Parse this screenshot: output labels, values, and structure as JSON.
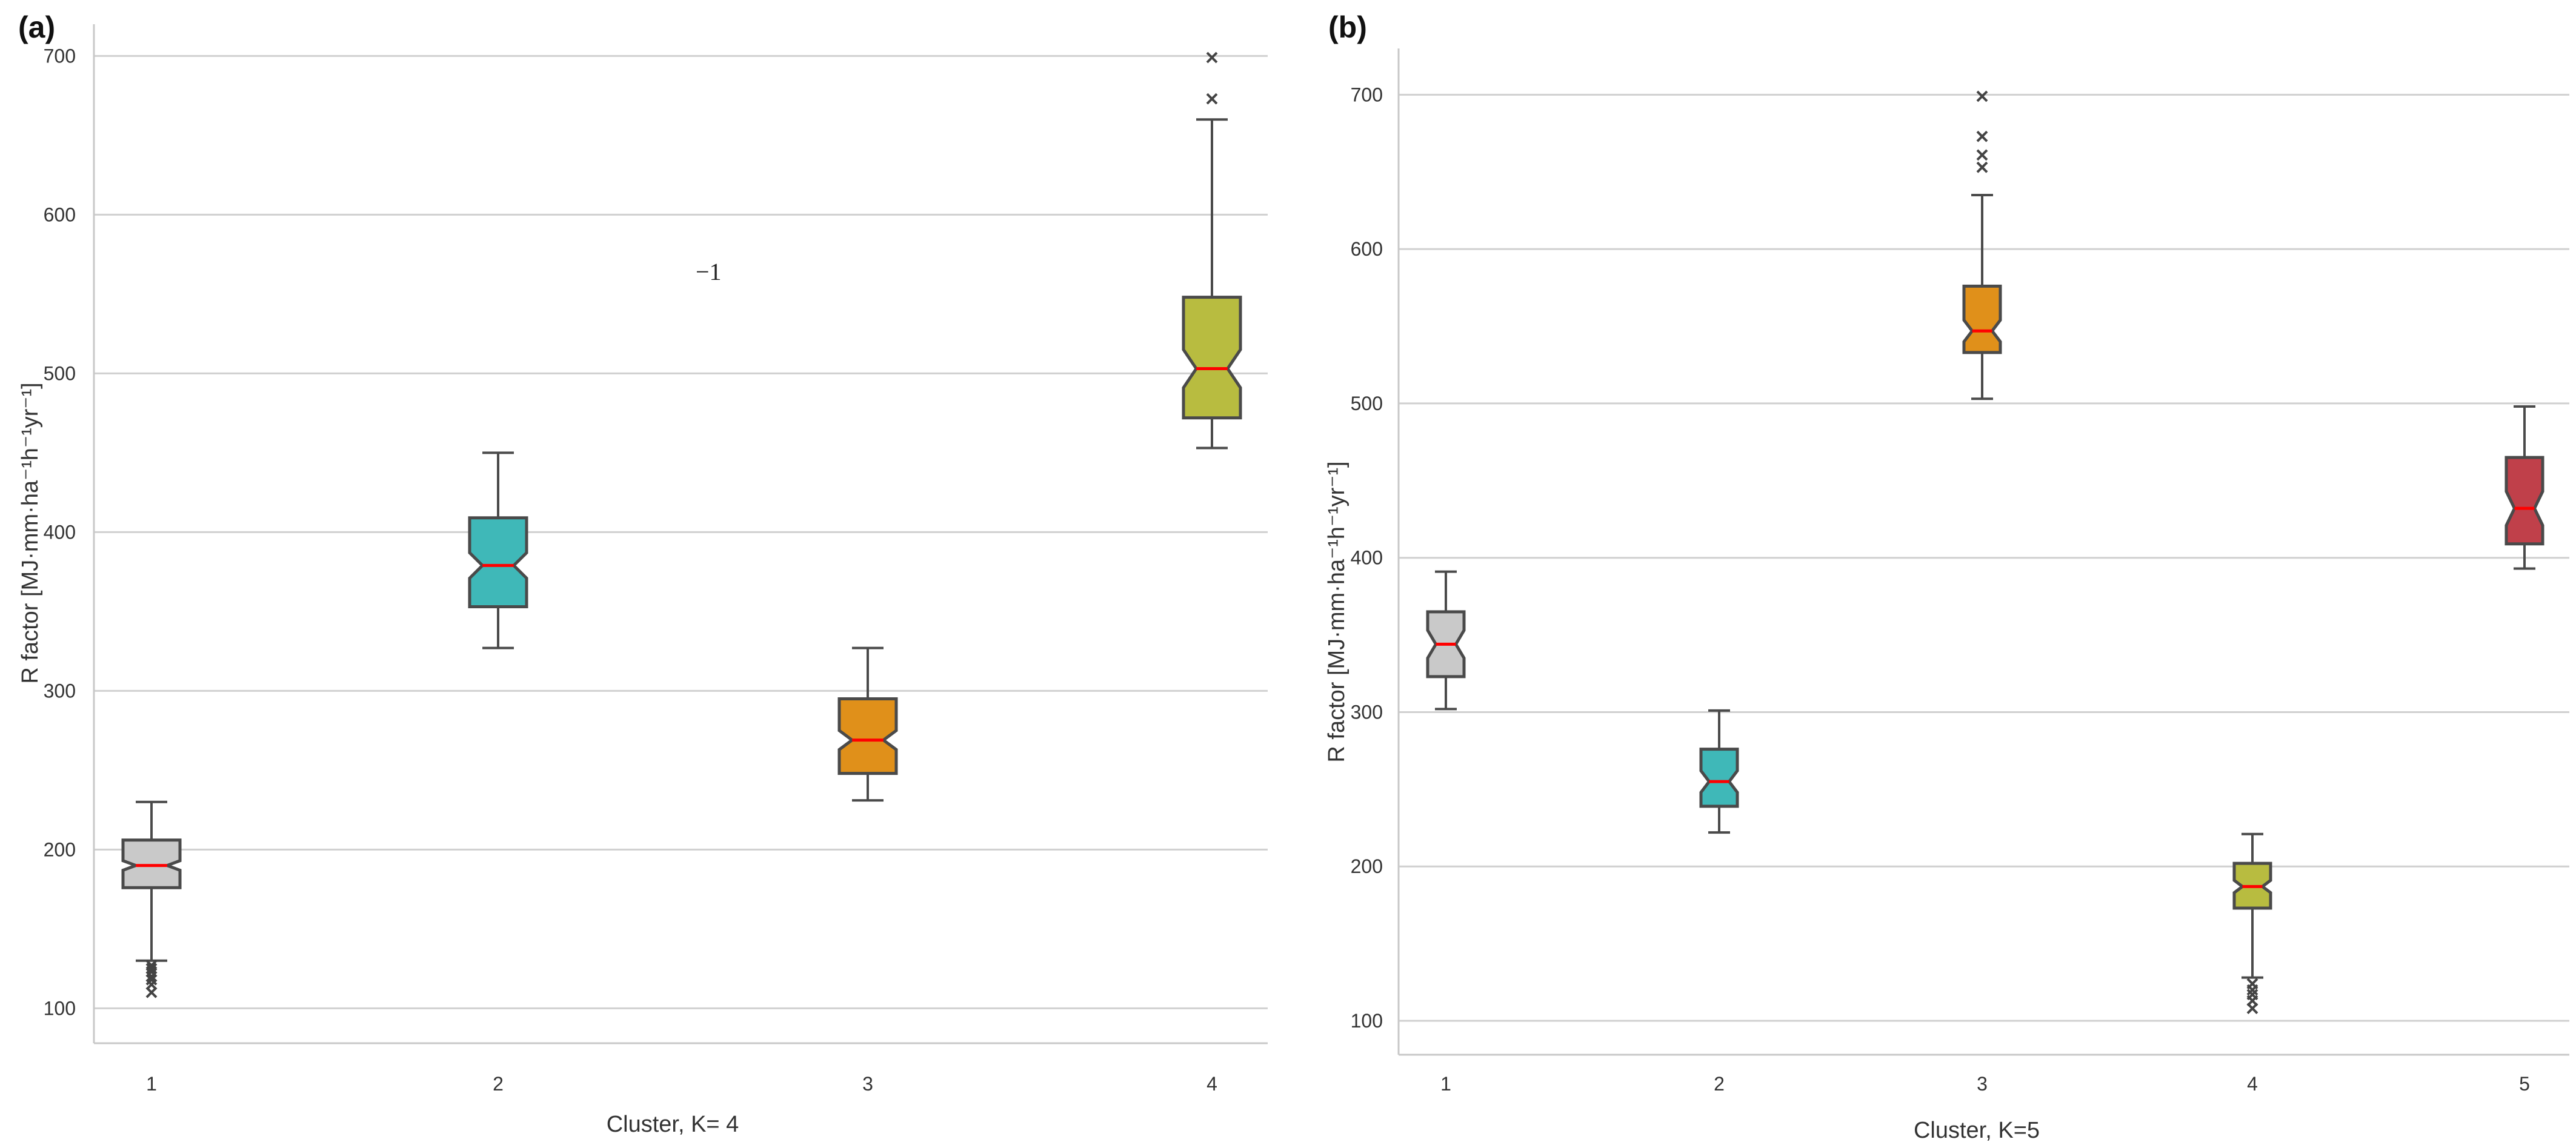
{
  "chart_data": [
    {
      "type": "boxplot",
      "panel_label": "(a)",
      "xlabel": "Cluster, K= 4",
      "ylabel": "R factor [MJ·mm·ha⁻¹h⁻¹yr⁻¹]",
      "ylim": [
        78,
        720
      ],
      "yticks": [
        100,
        200,
        300,
        400,
        500,
        600,
        700
      ],
      "annotation": "−1",
      "notched": true,
      "grid": "horizontal",
      "categories": [
        "1",
        "2",
        "3",
        "4"
      ],
      "boxes": [
        {
          "cluster": "1",
          "whislo": 130,
          "q1": 176,
          "med": 190,
          "q3": 206,
          "whishi": 230,
          "notch_lo": 187,
          "notch_hi": 193,
          "fliers": [
            127,
            125,
            123,
            120,
            118,
            115,
            110
          ],
          "color": "#c9c9c9"
        },
        {
          "cluster": "2",
          "whislo": 327,
          "q1": 353,
          "med": 379,
          "q3": 409,
          "whishi": 450,
          "notch_lo": 371,
          "notch_hi": 387,
          "fliers": [],
          "color": "#3fb8b8"
        },
        {
          "cluster": "3",
          "whislo": 231,
          "q1": 248,
          "med": 269,
          "q3": 295,
          "whishi": 327,
          "notch_lo": 263,
          "notch_hi": 275,
          "fliers": [],
          "color": "#e0901a"
        },
        {
          "cluster": "4",
          "whislo": 453,
          "q1": 472,
          "med": 503,
          "q3": 548,
          "whishi": 660,
          "notch_lo": 491,
          "notch_hi": 515,
          "fliers": [
            673,
            699
          ],
          "color": "#b8bc40"
        }
      ]
    },
    {
      "type": "boxplot",
      "panel_label": "(b)",
      "xlabel": "Cluster, K=5",
      "ylabel": "R factor [MJ·mm·ha⁻¹h⁻¹yr⁻¹]",
      "ylim": [
        78,
        730
      ],
      "yticks": [
        100,
        200,
        300,
        400,
        500,
        600,
        700
      ],
      "notched": true,
      "grid": "horizontal",
      "categories": [
        "1",
        "2",
        "3",
        "4",
        "5"
      ],
      "boxes": [
        {
          "cluster": "1",
          "whislo": 302,
          "q1": 323,
          "med": 344,
          "q3": 365,
          "whishi": 391,
          "notch_lo": 335,
          "notch_hi": 353,
          "fliers": [],
          "color": "#c9c9c9"
        },
        {
          "cluster": "2",
          "whislo": 222,
          "q1": 239,
          "med": 255,
          "q3": 276,
          "whishi": 301,
          "notch_lo": 248,
          "notch_hi": 262,
          "fliers": [],
          "color": "#3fb8b8"
        },
        {
          "cluster": "3",
          "whislo": 503,
          "q1": 533,
          "med": 547,
          "q3": 576,
          "whishi": 635,
          "notch_lo": 540,
          "notch_hi": 554,
          "fliers": [
            653,
            661,
            673,
            699
          ],
          "color": "#e0901a"
        },
        {
          "cluster": "4",
          "whislo": 128,
          "q1": 173,
          "med": 187,
          "q3": 202,
          "whishi": 221,
          "notch_lo": 183,
          "notch_hi": 191,
          "fliers": [
            124,
            120,
            117,
            113,
            108
          ],
          "color": "#b8bc40"
        },
        {
          "cluster": "5",
          "whislo": 393,
          "q1": 409,
          "med": 432,
          "q3": 465,
          "whishi": 498,
          "notch_lo": 421,
          "notch_hi": 443,
          "fliers": [],
          "color": "#c0404a"
        }
      ]
    }
  ]
}
